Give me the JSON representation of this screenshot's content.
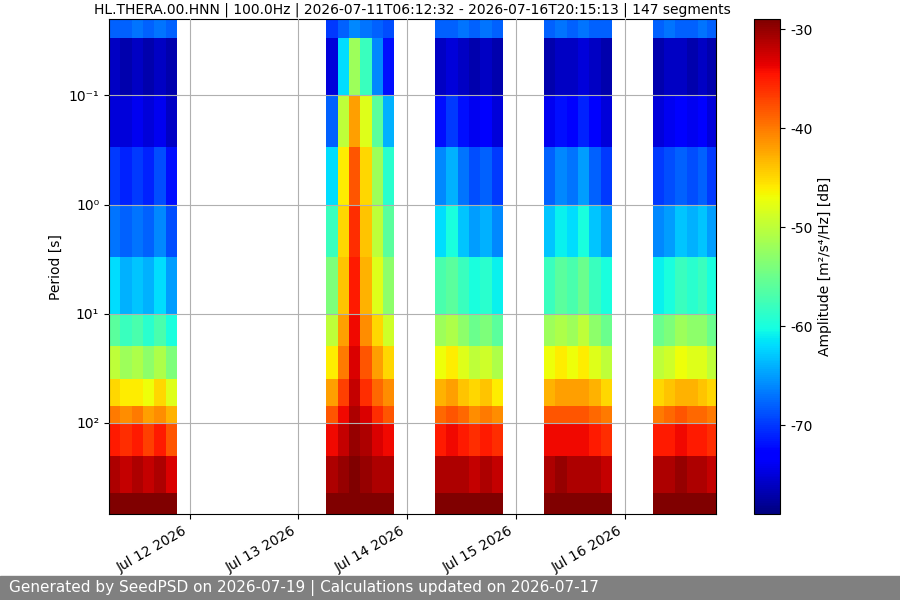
{
  "chart_data": {
    "type": "heatmap",
    "title": "HL.THERA.00.HNN | 100.0Hz | 2026-07-11T06:12:32 - 2026-07-16T20:15:13 | 147 segments",
    "footer": "Generated by SeedPSD on 2026-07-19 | Calculations updated on 2026-07-17",
    "y_label": "Period [s]",
    "log": "y",
    "grid": true,
    "xlim": [
      "2026-07-11T06:12:32",
      "2026-07-16T20:15:13"
    ],
    "xticks": [
      {
        "value": "2026-07-12",
        "label": "Jul 12 2026"
      },
      {
        "value": "2026-07-13",
        "label": "Jul 13 2026"
      },
      {
        "value": "2026-07-14",
        "label": "Jul 14 2026"
      },
      {
        "value": "2026-07-15",
        "label": "Jul 15 2026"
      },
      {
        "value": "2026-07-16",
        "label": "Jul 16 2026"
      }
    ],
    "ylim": [
      690,
      0.02
    ],
    "yticks": [
      {
        "value": 0.1,
        "label": "10⁻¹"
      },
      {
        "value": 1,
        "label": "10⁰"
      },
      {
        "value": 10,
        "label": "10¹"
      },
      {
        "value": 100,
        "label": "10²"
      }
    ],
    "x": [
      "2026-07-11T06:12:32",
      "2026-07-11T08:42:00",
      "2026-07-11T11:12:00",
      "2026-07-11T13:42:00",
      "2026-07-11T16:12:00",
      "2026-07-11T18:42:00",
      "2026-07-11T21:12:00",
      "2026-07-13T06:12:00",
      "2026-07-13T08:42:00",
      "2026-07-13T11:12:00",
      "2026-07-13T13:42:00",
      "2026-07-13T16:12:00",
      "2026-07-13T18:42:00",
      "2026-07-13T21:12:00",
      "2026-07-14T06:12:00",
      "2026-07-14T08:42:00",
      "2026-07-14T11:12:00",
      "2026-07-14T13:42:00",
      "2026-07-14T16:12:00",
      "2026-07-14T18:42:00",
      "2026-07-14T21:12:00",
      "2026-07-15T06:12:00",
      "2026-07-15T08:42:00",
      "2026-07-15T11:12:00",
      "2026-07-15T13:42:00",
      "2026-07-15T16:12:00",
      "2026-07-15T18:42:00",
      "2026-07-15T21:12:00",
      "2026-07-16T06:12:00",
      "2026-07-16T08:42:00",
      "2026-07-16T11:12:00",
      "2026-07-16T13:42:00",
      "2026-07-16T16:12:00",
      "2026-07-16T18:12:00",
      "2026-07-16T20:15:13"
    ],
    "y": [
      0.02,
      0.03,
      0.1,
      0.3,
      1,
      3,
      10,
      20,
      40,
      70,
      100,
      200,
      440,
      690
    ],
    "cells": [
      [
        -68,
        -76,
        -75,
        -70,
        -67,
        -62,
        -56,
        -50,
        -45,
        -40,
        -35,
        -31,
        -29
      ],
      [
        -68,
        -77,
        -75,
        -71,
        -68,
        -64,
        -58,
        -52,
        -46,
        -41,
        -36,
        -32,
        -29
      ],
      [
        -67,
        -76,
        -74,
        -70,
        -67,
        -63,
        -57,
        -51,
        -46,
        -40,
        -35,
        -31,
        -29
      ],
      [
        -68,
        -77,
        -75,
        -71,
        -68,
        -64,
        -59,
        -53,
        -47,
        -42,
        -37,
        -32,
        -29
      ],
      [
        -67,
        -76,
        -74,
        -69,
        -66,
        -62,
        -57,
        -51,
        -45,
        -41,
        -35,
        -31,
        -29
      ],
      [
        -68,
        -77,
        -76,
        -72,
        -69,
        -65,
        -60,
        -54,
        -48,
        -43,
        -38,
        -33,
        -29
      ],
      null,
      [
        -70,
        -75,
        -68,
        -62,
        -58,
        -54,
        -50,
        -46,
        -42,
        -38,
        -34,
        -31,
        -29
      ],
      [
        -68,
        -62,
        -50,
        -46,
        -45,
        -44,
        -42,
        -40,
        -37,
        -34,
        -32,
        -30,
        -29
      ],
      [
        -66,
        -52,
        -42,
        -38,
        -36,
        -35,
        -34,
        -33,
        -32,
        -31,
        -30,
        -29,
        -29
      ],
      [
        -67,
        -58,
        -48,
        -45,
        -44,
        -43,
        -41,
        -38,
        -36,
        -33,
        -31,
        -30,
        -29
      ],
      [
        -68,
        -66,
        -56,
        -52,
        -50,
        -48,
        -45,
        -42,
        -39,
        -36,
        -33,
        -31,
        -29
      ],
      [
        -69,
        -72,
        -64,
        -59,
        -56,
        -53,
        -49,
        -45,
        -41,
        -38,
        -34,
        -31,
        -29
      ],
      null,
      [
        -68,
        -76,
        -72,
        -66,
        -62,
        -57,
        -52,
        -47,
        -43,
        -39,
        -35,
        -31,
        -29
      ],
      [
        -68,
        -75,
        -70,
        -64,
        -60,
        -56,
        -51,
        -46,
        -42,
        -38,
        -34,
        -31,
        -29
      ],
      [
        -67,
        -76,
        -72,
        -67,
        -63,
        -58,
        -53,
        -48,
        -44,
        -39,
        -35,
        -31,
        -29
      ],
      [
        -68,
        -77,
        -74,
        -69,
        -65,
        -60,
        -55,
        -50,
        -45,
        -41,
        -36,
        -32,
        -29
      ],
      [
        -67,
        -76,
        -73,
        -68,
        -64,
        -59,
        -54,
        -49,
        -44,
        -40,
        -35,
        -31,
        -29
      ],
      [
        -68,
        -77,
        -75,
        -70,
        -66,
        -61,
        -56,
        -51,
        -46,
        -41,
        -36,
        -32,
        -29
      ],
      null,
      [
        -68,
        -77,
        -74,
        -68,
        -63,
        -58,
        -52,
        -47,
        -43,
        -38,
        -34,
        -31,
        -29
      ],
      [
        -67,
        -76,
        -72,
        -66,
        -61,
        -56,
        -51,
        -46,
        -42,
        -38,
        -34,
        -30,
        -29
      ],
      [
        -68,
        -76,
        -73,
        -67,
        -62,
        -57,
        -52,
        -47,
        -42,
        -38,
        -34,
        -31,
        -29
      ],
      [
        -67,
        -75,
        -71,
        -65,
        -60,
        -55,
        -50,
        -46,
        -42,
        -38,
        -34,
        -31,
        -29
      ],
      [
        -68,
        -76,
        -73,
        -68,
        -63,
        -58,
        -53,
        -48,
        -43,
        -39,
        -35,
        -31,
        -29
      ],
      [
        -68,
        -77,
        -75,
        -70,
        -65,
        -60,
        -55,
        -50,
        -45,
        -40,
        -36,
        -32,
        -29
      ],
      null,
      [
        -68,
        -77,
        -75,
        -70,
        -66,
        -61,
        -55,
        -50,
        -45,
        -40,
        -35,
        -31,
        -29
      ],
      [
        -67,
        -76,
        -74,
        -69,
        -65,
        -60,
        -54,
        -49,
        -44,
        -39,
        -35,
        -31,
        -29
      ],
      [
        -68,
        -76,
        -73,
        -68,
        -63,
        -58,
        -52,
        -47,
        -43,
        -38,
        -34,
        -30,
        -29
      ],
      [
        -68,
        -77,
        -74,
        -69,
        -64,
        -59,
        -53,
        -48,
        -43,
        -39,
        -35,
        -31,
        -29
      ],
      [
        -67,
        -76,
        -73,
        -68,
        -63,
        -58,
        -53,
        -48,
        -44,
        -39,
        -35,
        -31,
        -29
      ],
      [
        -68,
        -77,
        -75,
        -70,
        -65,
        -60,
        -55,
        -50,
        -45,
        -40,
        -36,
        -32,
        -29
      ]
    ],
    "colorbar": {
      "label": "Amplitude [m²/s⁴/Hz] [dB]",
      "range": [
        -79,
        -29
      ],
      "ticks": [
        -30,
        -40,
        -50,
        -60,
        -70
      ]
    }
  }
}
